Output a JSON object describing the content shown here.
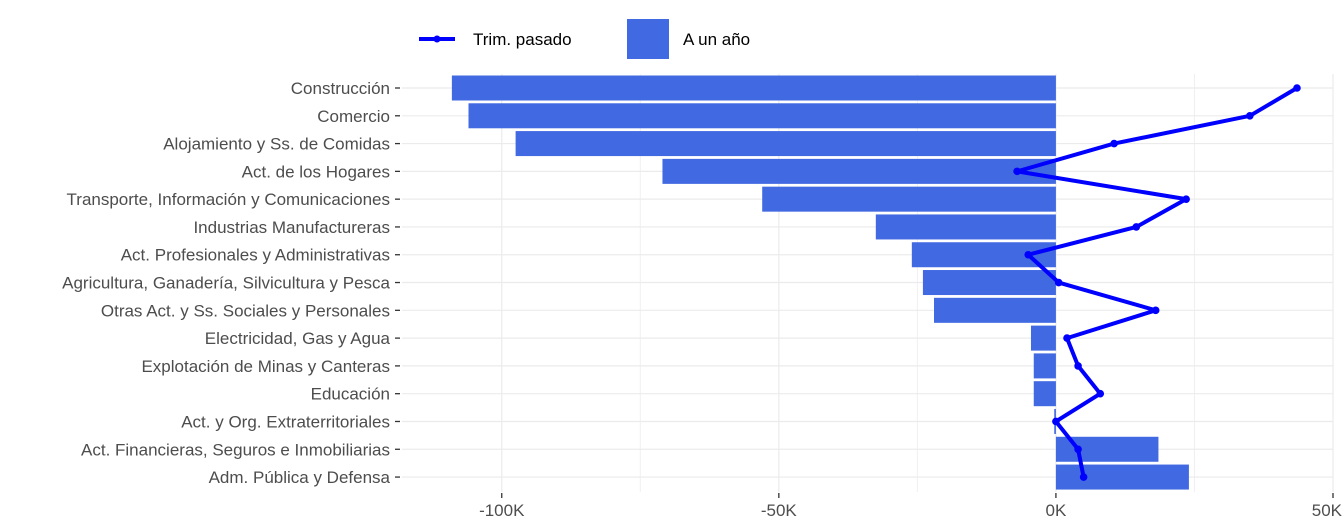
{
  "chart_data": {
    "type": "bar",
    "orientation": "horizontal",
    "title": "",
    "xlabel": "",
    "ylabel": "",
    "categories": [
      "Construcción",
      "Comercio",
      "Alojamiento y Ss. de Comidas",
      "Act. de los Hogares",
      "Transporte, Información y Comunicaciones",
      "Industrias Manufactureras",
      "Act. Profesionales y Administrativas",
      "Agricultura, Ganadería, Silvicultura y Pesca",
      "Otras Act. y Ss. Sociales y Personales",
      "Electricidad, Gas y Agua",
      "Explotación de Minas y Canteras",
      "Educación",
      "Act. y Org. Extraterritoriales",
      "Act. Financieras, Seguros e Inmobiliarias",
      "Adm. Pública y Defensa"
    ],
    "series": [
      {
        "name": "A un año",
        "kind": "bar",
        "color": "#4169E1",
        "values": [
          -109000,
          -106000,
          -97500,
          -71000,
          -53000,
          -32500,
          -26000,
          -24000,
          -22000,
          -4500,
          -4000,
          -4000,
          -300,
          18500,
          24000
        ]
      },
      {
        "name": "Trim. pasado",
        "kind": "line",
        "color": "#0000FF",
        "values": [
          43500,
          35000,
          10500,
          -7000,
          23500,
          14500,
          -5000,
          500,
          18000,
          2000,
          4000,
          8000,
          0,
          4000,
          5000
        ]
      }
    ],
    "xlim": [
      -118000,
      50000
    ],
    "xticks": [
      -100000,
      -50000,
      0,
      50000
    ],
    "xtick_labels": [
      "-100K",
      "-50K",
      "0K",
      "50K"
    ],
    "grid": true,
    "legend_position": "top"
  }
}
